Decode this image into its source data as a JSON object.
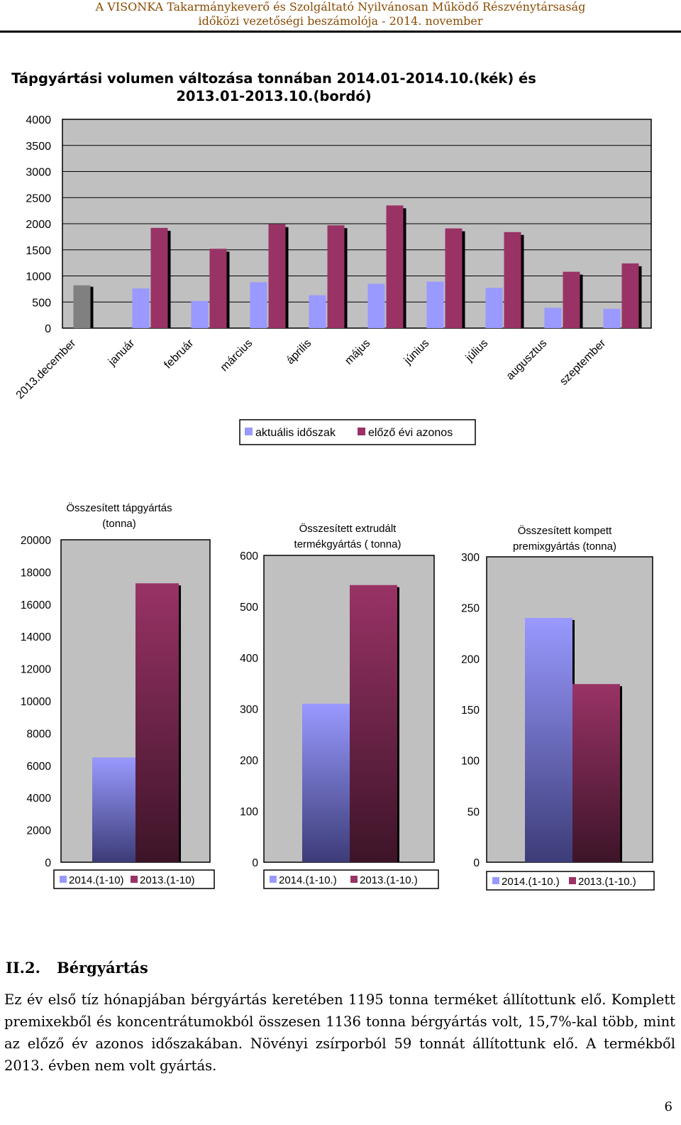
{
  "header": {
    "line1": "A VISONKA Takarmánykeverő és Szolgáltató Nyilvánosan Működő Részvénytársaság",
    "line2": "időközi vezetőségi beszámolója - 2014. november"
  },
  "colors": {
    "header_text": "#8a4a00",
    "current": "#9999ff",
    "previous": "#993366",
    "december": "#808080",
    "plot_bg": "#c0c0c0"
  },
  "chart_data": [
    {
      "type": "bar",
      "title": "Tápgyártási volumen változása tonnában 2014.01-2014.10.(kék) és 2013.01-2013.10.(bordó)",
      "title_line1": "Tápgyártási volumen változása tonnában 2014.01-2014.10.(kék) és",
      "title_line2": "2013.01-2013.10.(bordó)",
      "categories": [
        "2013.december",
        "január",
        "február",
        "március",
        "április",
        "május",
        "június",
        "július",
        "augusztus",
        "szeptember"
      ],
      "series": [
        {
          "name": "aktuális időszak",
          "values": [
            820,
            760,
            520,
            880,
            630,
            850,
            890,
            770,
            390,
            370
          ]
        },
        {
          "name": "előző évi azonos",
          "values": [
            null,
            1920,
            1520,
            1990,
            1970,
            2350,
            1910,
            1840,
            1080,
            1240
          ]
        }
      ],
      "ylim": [
        0,
        4000
      ],
      "yticks": [
        "0",
        "500",
        "1000",
        "1500",
        "2000",
        "2500",
        "3000",
        "3500",
        "4000"
      ],
      "legend_position": "bottom",
      "grid": true
    },
    {
      "type": "bar",
      "title": "Összesített tápgyártás (tonna)",
      "title_line1": "Összesített tápgyártás",
      "title_line2": "(tonna)",
      "series": [
        {
          "name": "2014.(1-10)",
          "values": [
            6500
          ]
        },
        {
          "name": "2013.(1-10)",
          "values": [
            17300
          ]
        }
      ],
      "ylim": [
        0,
        20000
      ],
      "yticks": [
        "0",
        "2000",
        "4000",
        "6000",
        "8000",
        "10000",
        "12000",
        "14000",
        "16000",
        "18000",
        "20000"
      ],
      "legend_position": "bottom"
    },
    {
      "type": "bar",
      "title": "Összesített extrudált termékgyártás ( tonna)",
      "title_line1": "Összesített extrudált",
      "title_line2": "termékgyártás ( tonna)",
      "series": [
        {
          "name": "2014.(1-10.)",
          "values": [
            310
          ]
        },
        {
          "name": "2013.(1-10.)",
          "values": [
            542
          ]
        }
      ],
      "ylim": [
        0,
        600
      ],
      "yticks": [
        "0",
        "100",
        "200",
        "300",
        "400",
        "500",
        "600"
      ],
      "legend_position": "bottom"
    },
    {
      "type": "bar",
      "title": "Összesített kompett premixgyártás (tonna)",
      "title_line1": "Összesített kompett",
      "title_line2": "premixgyártás (tonna)",
      "series": [
        {
          "name": "2014.(1-10.)",
          "values": [
            240
          ]
        },
        {
          "name": "2013.(1-10.)",
          "values": [
            175
          ]
        }
      ],
      "ylim": [
        0,
        300
      ],
      "yticks": [
        "0",
        "50",
        "100",
        "150",
        "200",
        "250",
        "300"
      ],
      "legend_position": "bottom"
    }
  ],
  "section": {
    "number": "II.2.",
    "title": "Bérgyártás",
    "paragraph": "Ez év első tíz hónapjában bérgyártás keretében 1195 tonna terméket állítottunk elő. Komplett premixekből és koncentrátumokból összesen 1136 tonna bérgyártás volt, 15,7%-kal több, mint az előző év azonos időszakában. Növényi zsírporból 59 tonnát állítottunk elő. A termékből 2013. évben nem volt gyártás."
  },
  "page_number": "6"
}
